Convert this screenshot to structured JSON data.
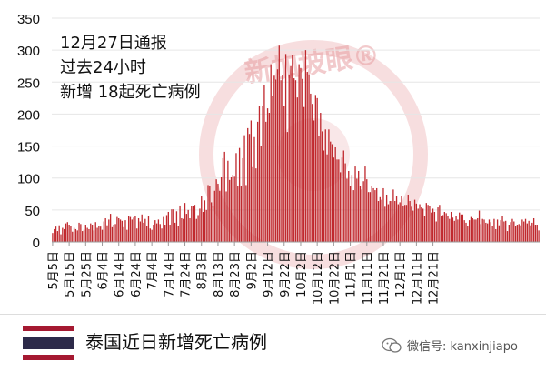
{
  "chart_data": {
    "type": "bar",
    "annotation": [
      "12月27日通报",
      "过去24小时",
      "新增 18起死亡病例"
    ],
    "ylim": [
      0,
      350
    ],
    "yticks": [
      0,
      50,
      100,
      150,
      200,
      250,
      300,
      350
    ],
    "xtick_labels": [
      "5月5日",
      "5月15日",
      "5月25日",
      "6月4日",
      "6月14日",
      "6月24日",
      "7月4日",
      "7月14日",
      "7月24日",
      "8月3日",
      "8月13日",
      "8月23日",
      "9月2日",
      "9月12日",
      "9月22日",
      "10月2日",
      "10月12日",
      "10月22日",
      "11月1日",
      "11月11日",
      "11月21日",
      "12月1日",
      "12月11日",
      "12月21日"
    ],
    "start_date": "5月5日",
    "bar_color": "#c0292e",
    "values": [
      14,
      20,
      24,
      17,
      26,
      12,
      22,
      20,
      29,
      31,
      27,
      25,
      16,
      22,
      20,
      18,
      30,
      28,
      17,
      19,
      27,
      22,
      20,
      29,
      27,
      18,
      31,
      22,
      25,
      24,
      19,
      32,
      37,
      26,
      35,
      44,
      23,
      27,
      28,
      39,
      37,
      35,
      33,
      23,
      34,
      19,
      41,
      39,
      35,
      38,
      41,
      21,
      37,
      32,
      43,
      30,
      36,
      25,
      40,
      21,
      19,
      27,
      34,
      29,
      35,
      28,
      21,
      39,
      27,
      42,
      47,
      27,
      51,
      51,
      30,
      48,
      25,
      57,
      37,
      36,
      61,
      44,
      50,
      37,
      56,
      56,
      58,
      36,
      42,
      52,
      72,
      47,
      65,
      50,
      89,
      88,
      62,
      57,
      80,
      98,
      91,
      80,
      101,
      131,
      141,
      79,
      127,
      97,
      101,
      105,
      102,
      139,
      88,
      147,
      88,
      131,
      167,
      89,
      178,
      169,
      190,
      117,
      164,
      115,
      188,
      212,
      150,
      212,
      245,
      188,
      209,
      202,
      278,
      228,
      260,
      254,
      270,
      307,
      253,
      261,
      213,
      294,
      172,
      262,
      275,
      293,
      256,
      253,
      226,
      278,
      272,
      255,
      211,
      300,
      266,
      262,
      232,
      216,
      190,
      230,
      225,
      166,
      202,
      173,
      143,
      176,
      137,
      176,
      157,
      153,
      132,
      148,
      129,
      129,
      109,
      132,
      143,
      123,
      99,
      111,
      87,
      105,
      81,
      118,
      99,
      111,
      88,
      82,
      95,
      118,
      98,
      78,
      78,
      88,
      84,
      81,
      84,
      64,
      70,
      66,
      84,
      55,
      74,
      59,
      64,
      64,
      82,
      64,
      72,
      59,
      62,
      72,
      56,
      58,
      58,
      74,
      64,
      55,
      49,
      66,
      60,
      52,
      59,
      54,
      52,
      40,
      61,
      58,
      56,
      46,
      52,
      47,
      32,
      54,
      58,
      41,
      42,
      47,
      45,
      40,
      36,
      47,
      38,
      33,
      40,
      35,
      46,
      43,
      43,
      34,
      30,
      25,
      34,
      39,
      37,
      35,
      35,
      37,
      49,
      28,
      36,
      35,
      30,
      29,
      35,
      31,
      25,
      36,
      20,
      35,
      26,
      34,
      41,
      32,
      33,
      17,
      27,
      31,
      36,
      32,
      25,
      27,
      28,
      26,
      35,
      32,
      36,
      29,
      33,
      26,
      30,
      37,
      27,
      27,
      18
    ]
  },
  "watermark": {
    "text": "新加坡眼®",
    "color": "#e8a0a3"
  },
  "footer": {
    "title": "泰国近日新增死亡病例",
    "wechat_label": "微信号: kanxinjiapo",
    "flag_colors": [
      "#a51931",
      "#ffffff",
      "#2d2a4a"
    ]
  }
}
